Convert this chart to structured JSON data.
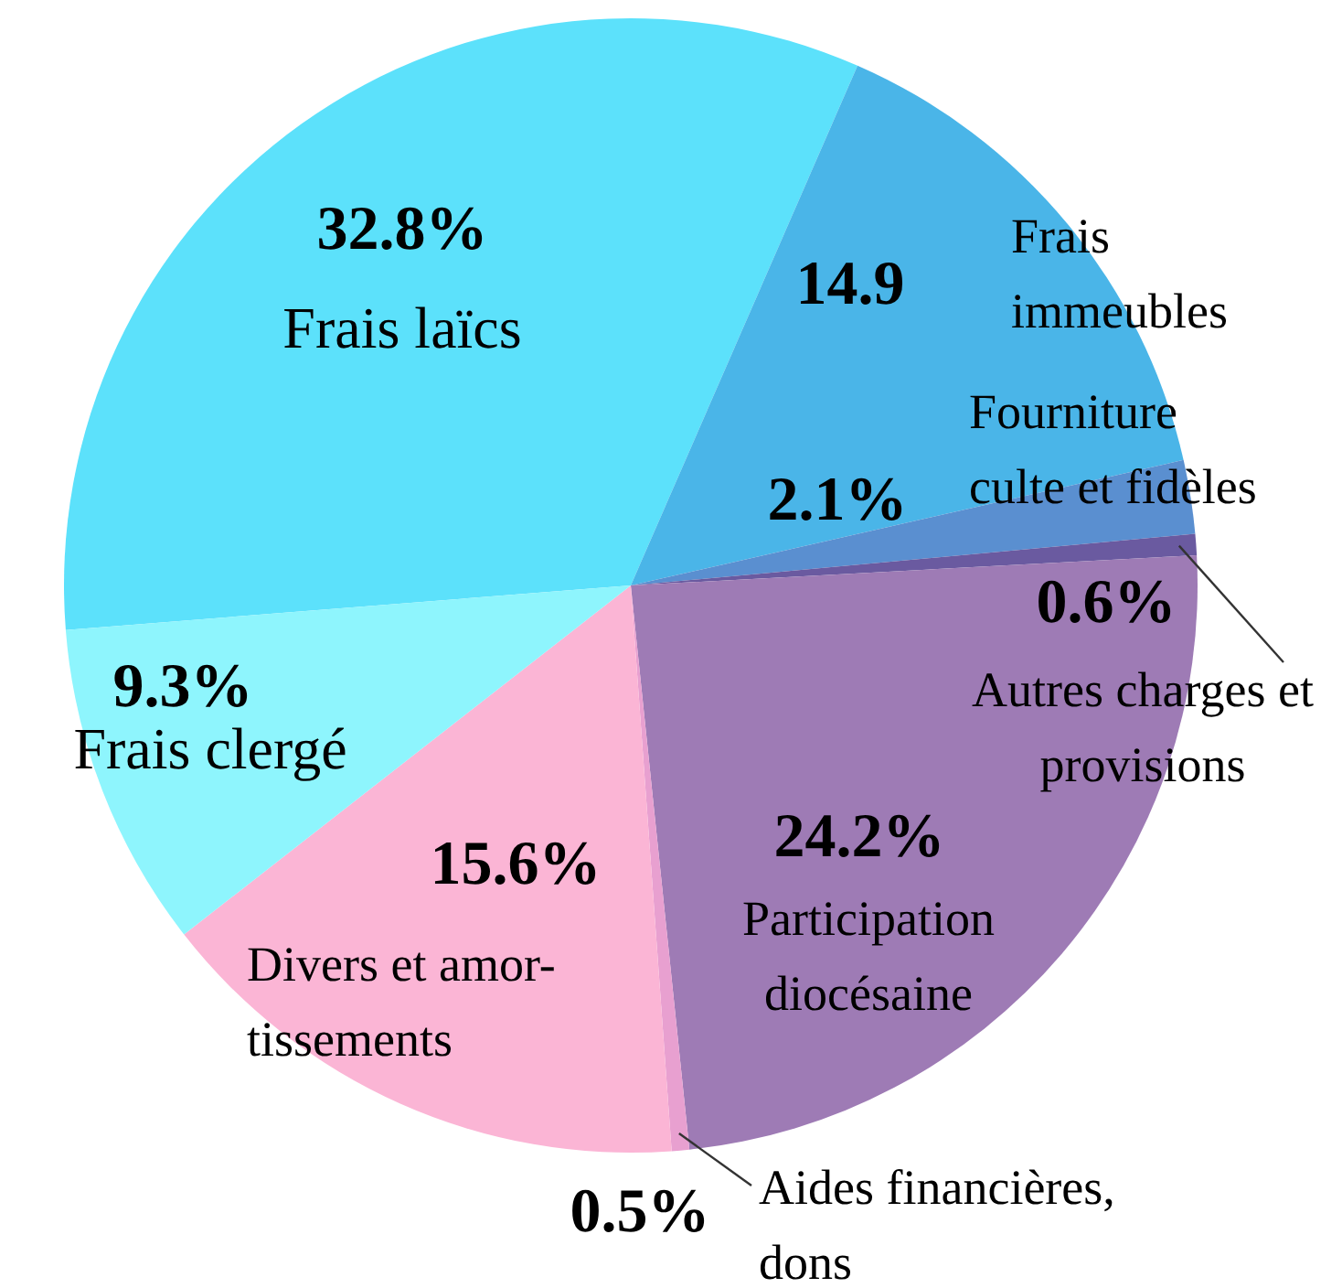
{
  "chart_data": {
    "type": "pie",
    "categories": [
      "Frais laïcs",
      "Frais\nimmeubles",
      "Fourniture\nculte et fidèles",
      "Autres charges et\nprovisions",
      "Participation\ndiocésaine",
      "Aides financières,\ndons",
      "Divers et amor-\ntissements",
      "Frais clergé"
    ],
    "values": [
      32.8,
      14.9,
      2.1,
      0.6,
      24.2,
      0.5,
      15.6,
      9.3
    ],
    "value_labels": [
      "32.8%",
      "14.9",
      "2.1%",
      "0.6%",
      "24.2%",
      "0.5%",
      "15.6%",
      "9.3%"
    ],
    "colors": [
      "#5ce1fb",
      "#4ab5e8",
      "#5a8fd0",
      "#6a5aa0",
      "#9e7bb5",
      "#e8a0d0",
      "#fbb5d5",
      "#8ef5fd"
    ]
  }
}
